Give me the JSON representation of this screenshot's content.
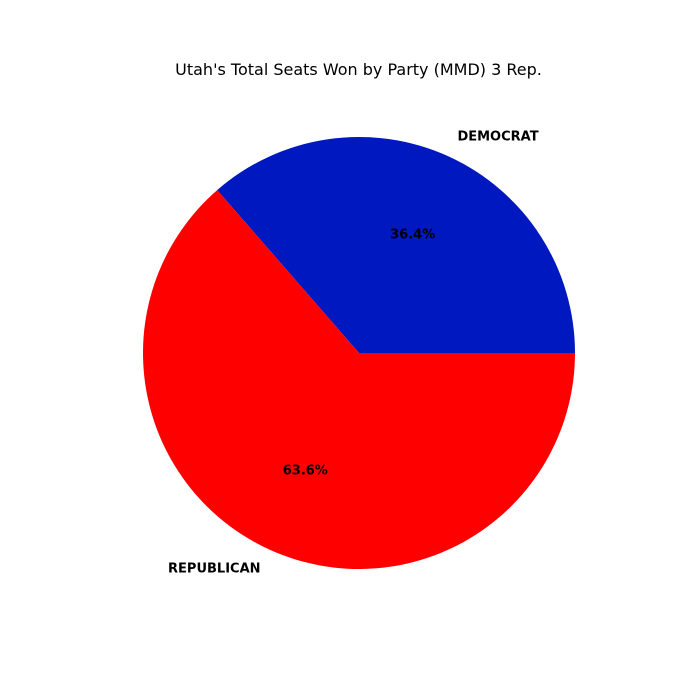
{
  "chart_data": {
    "type": "pie",
    "title": "Utah's Total Seats Won by Party (MMD) 3 Rep.",
    "slices": [
      {
        "label": "DEMOCRAT",
        "value": 36.4,
        "pct_label": "36.4%",
        "color": "#0018bf"
      },
      {
        "label": "REPUBLICAN",
        "value": 63.6,
        "pct_label": "63.6%",
        "color": "#ff0000"
      }
    ],
    "start_angle_deg": 0,
    "direction": "counterclockwise"
  }
}
